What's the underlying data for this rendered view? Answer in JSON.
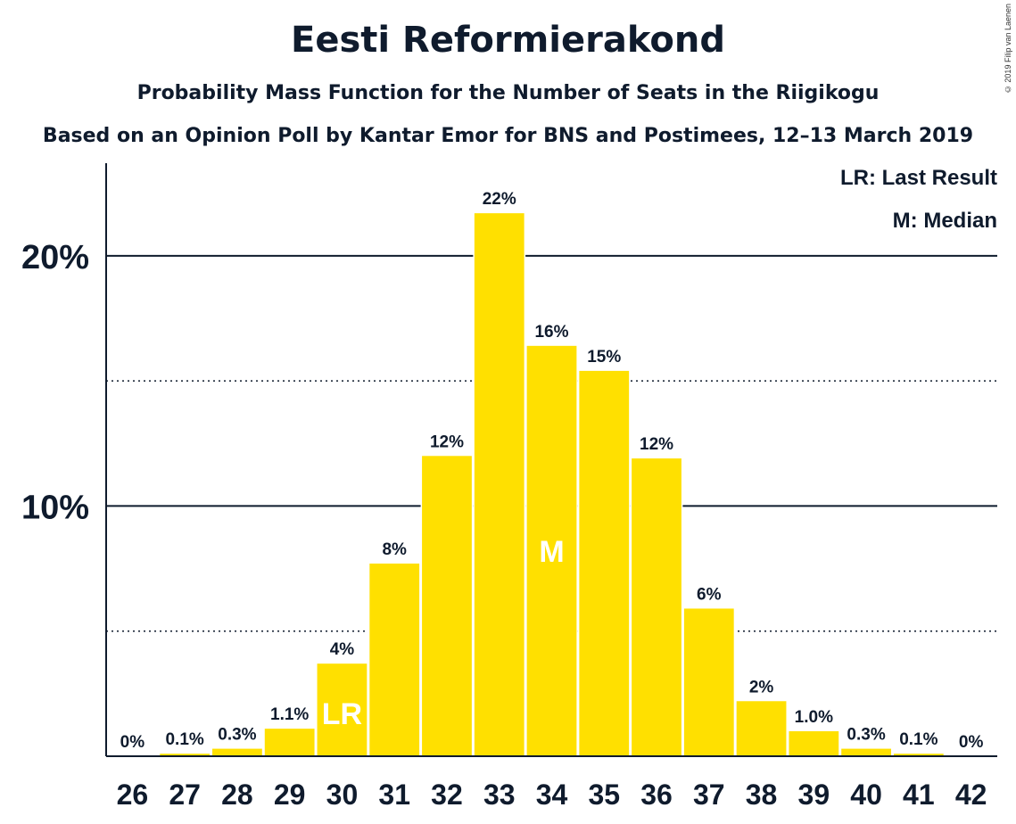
{
  "chart_data": {
    "type": "bar",
    "title": "Eesti Reformierakond",
    "subtitle": "Probability Mass Function for the Number of Seats in the Riigikogu",
    "subtitle2": "Based on an Opinion Poll by Kantar Emor for BNS and Postimees, 12–13 March 2019",
    "copyright": "© 2019 Filip van Laenen",
    "categories": [
      "26",
      "27",
      "28",
      "29",
      "30",
      "31",
      "32",
      "33",
      "34",
      "35",
      "36",
      "37",
      "38",
      "39",
      "40",
      "41",
      "42"
    ],
    "values": [
      0,
      0.1,
      0.3,
      1.1,
      3.7,
      7.7,
      12.0,
      21.7,
      16.4,
      15.4,
      11.9,
      5.9,
      2.2,
      1.0,
      0.3,
      0.1,
      0
    ],
    "value_labels": [
      "0%",
      "0.1%",
      "0.3%",
      "1.1%",
      "4%",
      "8%",
      "12%",
      "22%",
      "16%",
      "15%",
      "12%",
      "6%",
      "2%",
      "1.0%",
      "0.3%",
      "0.1%",
      "0%"
    ],
    "ylim": [
      0,
      23.7
    ],
    "y_ticks": [
      {
        "value": 10,
        "label": "10%"
      },
      {
        "value": 20,
        "label": "20%"
      }
    ],
    "minor_gridlines": [
      5,
      15
    ],
    "last_result": {
      "category": "30",
      "label": "LR"
    },
    "median": {
      "category": "34",
      "label": "M"
    },
    "legend": [
      "LR: Last Result",
      "M: Median"
    ],
    "legend_position": "top-right",
    "bar_color": "#FFE000",
    "axis_color": "#0f1b2d"
  }
}
